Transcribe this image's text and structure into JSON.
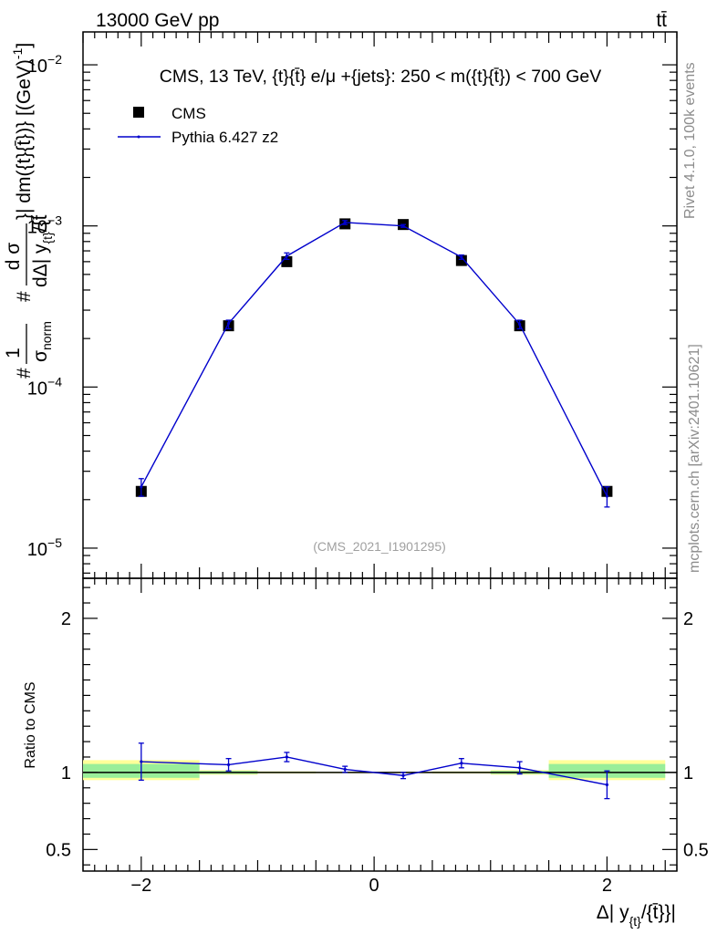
{
  "header": {
    "left": "13000 GeV pp",
    "right": "tt̄"
  },
  "side_labels": {
    "rivet": "Rivet 4.1.0,  100k events",
    "source": "mcplots.cern.ch [arXiv:2401.10621]"
  },
  "chart_data": [
    {
      "type": "scatter",
      "title": "CMS, 13 TeV, {t}{t̄} e/μ +{jets}: 250 < m({t}{t̄}) < 700 GeV",
      "watermark": "(CMS_2021_I1901295)",
      "ylabel": {
        "full": "#(1/σ_norm)(dσ/dΔ|y_{t}/{t̄}|) / dm({t}{t̄}) [(GeV)^-1]",
        "hash1": "#",
        "one": "1",
        "sigma": "σ",
        "norm": "norm",
        "hash2": "#",
        "d_sigma_num": "d σ",
        "d_sigma_den": "dΔ| y",
        "sub_t": "{t}",
        "den_tail": "/{t̄",
        "right": "}| dm({t}{t̄})} [(GeV)",
        "exp": "-1",
        "close": "]"
      },
      "xlabel": {
        "main": "Δ| y",
        "sub": "{t}",
        "tail": "/{t̄}}|"
      },
      "yscale": "log",
      "ylim": [
        6.5e-06,
        0.016
      ],
      "xlim": [
        -2.5,
        2.6
      ],
      "y_ticks": [
        {
          "value": 0.01,
          "base": "10",
          "exp": "−2"
        },
        {
          "value": 0.001,
          "base": "10",
          "exp": "−3"
        },
        {
          "value": 0.0001,
          "base": "10",
          "exp": "−4"
        },
        {
          "value": 1e-05,
          "base": "10",
          "exp": "−5"
        }
      ],
      "legend": {
        "position": "top-left",
        "entries": [
          "CMS",
          "Pythia 6.427 z2"
        ]
      },
      "series": [
        {
          "name": "CMS",
          "x": [
            -2.0,
            -1.25,
            -0.75,
            -0.25,
            0.25,
            0.75,
            1.25,
            2.0
          ],
          "values": [
            2.25e-05,
            0.00024,
            0.0006,
            0.00103,
            0.00102,
            0.00061,
            0.00024,
            2.25e-05
          ],
          "color": "#000000"
        },
        {
          "name": "Pythia 6.427 z2",
          "x": [
            -2.0,
            -1.25,
            -0.75,
            -0.25,
            0.25,
            0.75,
            1.25,
            2.0
          ],
          "values": [
            2.4e-05,
            0.000248,
            0.00065,
            0.00105,
            0.001,
            0.00064,
            0.000245,
            2.1e-05
          ],
          "err_low": [
            2.1e-05,
            0.00023,
            0.00062,
            0.00102,
            0.00098,
            0.00062,
            0.00023,
            1.8e-05
          ],
          "err_high": [
            2.7e-05,
            0.00026,
            0.00068,
            0.00108,
            0.00102,
            0.00066,
            0.00026,
            2.4e-05
          ],
          "color": "#0000cc"
        }
      ]
    },
    {
      "type": "line",
      "ylabel": "Ratio to CMS",
      "ylim": [
        0.36,
        2.26
      ],
      "xlim": [
        -2.5,
        2.6
      ],
      "x_ticks": [
        {
          "value": -2,
          "label": "−2"
        },
        {
          "value": 0,
          "label": "0"
        },
        {
          "value": 2,
          "label": "2"
        }
      ],
      "y_ticks": [
        {
          "value": 2,
          "label": "2"
        },
        {
          "value": 1,
          "label": "1"
        },
        {
          "value": 0.5,
          "label": "0.5"
        }
      ],
      "bands": [
        {
          "xlo": -2.5,
          "xhi": -1.5,
          "yellow": [
            0.95,
            1.08
          ],
          "green": [
            0.965,
            1.055
          ]
        },
        {
          "xlo": -1.5,
          "xhi": -1.0,
          "yellow": [
            0.985,
            1.015
          ],
          "green": [
            0.99,
            1.01
          ]
        },
        {
          "xlo": -1.0,
          "xhi": -0.5,
          "yellow": [
            0.993,
            1.007
          ],
          "green": [
            0.996,
            1.004
          ]
        },
        {
          "xlo": -0.5,
          "xhi": 0.0,
          "yellow": [
            0.995,
            1.005
          ],
          "green": [
            0.997,
            1.003
          ]
        },
        {
          "xlo": 0.0,
          "xhi": 0.5,
          "yellow": [
            0.995,
            1.005
          ],
          "green": [
            0.997,
            1.003
          ]
        },
        {
          "xlo": 0.5,
          "xhi": 1.0,
          "yellow": [
            0.993,
            1.007
          ],
          "green": [
            0.996,
            1.004
          ]
        },
        {
          "xlo": 1.0,
          "xhi": 1.5,
          "yellow": [
            0.985,
            1.015
          ],
          "green": [
            0.99,
            1.01
          ]
        },
        {
          "xlo": 1.5,
          "xhi": 2.5,
          "yellow": [
            0.95,
            1.08
          ],
          "green": [
            0.965,
            1.055
          ]
        }
      ],
      "series": [
        {
          "name": "Pythia 6.427 z2 / CMS",
          "x": [
            -2.0,
            -1.25,
            -0.75,
            -0.25,
            0.25,
            0.75,
            1.25,
            2.0
          ],
          "values": [
            1.07,
            1.05,
            1.1,
            1.02,
            0.98,
            1.06,
            1.03,
            0.92
          ],
          "err_low": [
            0.95,
            1.01,
            1.07,
            1.0,
            0.96,
            1.03,
            0.99,
            0.83
          ],
          "err_high": [
            1.19,
            1.09,
            1.13,
            1.04,
            1.0,
            1.09,
            1.07,
            1.01
          ],
          "color": "#0000cc"
        }
      ]
    }
  ]
}
